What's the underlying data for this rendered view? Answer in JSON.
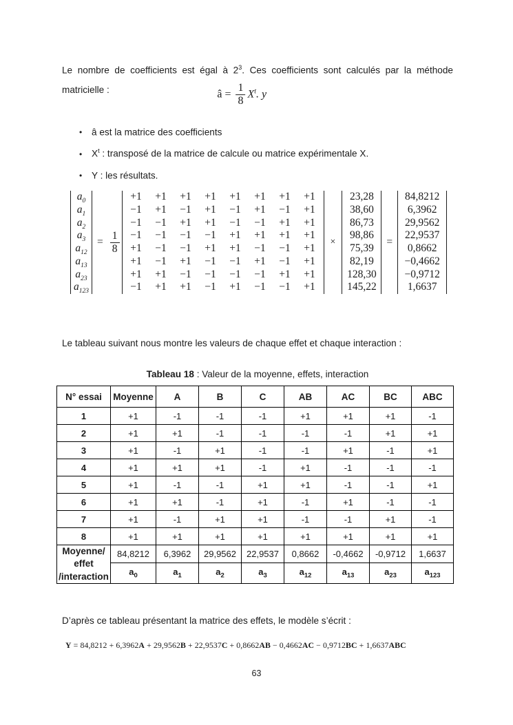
{
  "intro": {
    "line1_pre": "Le nombre de coefficients est égal à 2",
    "line1_sup": "3",
    "line1_post": ". Ces coefficients sont calculés par la méthode",
    "line2": "matricielle :"
  },
  "formula": {
    "lhs": "â =",
    "frac_num": "1",
    "frac_den": "8",
    "var": "X",
    "var_sup": "t",
    "tail": ". y"
  },
  "bullets": [
    {
      "pre": "â est la matrice des coefficients",
      "sup": "",
      "post": ""
    },
    {
      "pre": "X",
      "sup": "t",
      "post": " : transposé de la matrice de calcule ou matrice expérimentale X."
    },
    {
      "pre": "Y : les résultats.",
      "sup": "",
      "post": ""
    }
  ],
  "matrix_equation": {
    "lhs_labels": [
      [
        "a",
        "0"
      ],
      [
        "a",
        "1"
      ],
      [
        "a",
        "2"
      ],
      [
        "a",
        "3"
      ],
      [
        "a",
        "12"
      ],
      [
        "a",
        "13"
      ],
      [
        "a",
        "23"
      ],
      [
        "a",
        "123"
      ]
    ],
    "equals": "=",
    "frac_num": "1",
    "frac_den": "8",
    "matrix_rows": [
      [
        "+1",
        "+1",
        "+1",
        "+1",
        "+1",
        "+1",
        "+1",
        "+1"
      ],
      [
        "−1",
        "+1",
        "−1",
        "+1",
        "−1",
        "+1",
        "−1",
        "+1"
      ],
      [
        "−1",
        "−1",
        "+1",
        "+1",
        "−1",
        "−1",
        "+1",
        "+1"
      ],
      [
        "−1",
        "−1",
        "−1",
        "−1",
        "+1",
        "+1",
        "+1",
        "+1"
      ],
      [
        "+1",
        "−1",
        "−1",
        "+1",
        "+1",
        "−1",
        "−1",
        "+1"
      ],
      [
        "+1",
        "−1",
        "+1",
        "−1",
        "−1",
        "+1",
        "−1",
        "+1"
      ],
      [
        "+1",
        "+1",
        "−1",
        "−1",
        "−1",
        "−1",
        "+1",
        "+1"
      ],
      [
        "−1",
        "+1",
        "+1",
        "−1",
        "+1",
        "−1",
        "−1",
        "+1"
      ]
    ],
    "times": "×",
    "y_vector": [
      "23,28",
      "38,60",
      "86,73",
      "98,86",
      "75,39",
      "82,19",
      "128,30",
      "145,22"
    ],
    "equals2": "=",
    "result_vector": [
      "84,8212",
      "6,3962",
      "29,9562",
      "22,9537",
      "0,8662",
      "−0,4662",
      "−0,9712",
      "1,6637"
    ]
  },
  "paragraph_table": "Le tableau suivant nous montre les valeurs de chaque effet et chaque interaction :",
  "table": {
    "caption_bold": "Tableau 18",
    "caption_rest": " : Valeur de la moyenne, effets, interaction",
    "headers": [
      "N° essai",
      "Moyenne",
      "A",
      "B",
      "C",
      "AB",
      "AC",
      "BC",
      "ABC"
    ],
    "rows": [
      [
        "1",
        "+1",
        "-1",
        "-1",
        "-1",
        "+1",
        "+1",
        "+1",
        "-1"
      ],
      [
        "2",
        "+1",
        "+1",
        "-1",
        "-1",
        "-1",
        "-1",
        "+1",
        "+1"
      ],
      [
        "3",
        "+1",
        "-1",
        "+1",
        "-1",
        "-1",
        "+1",
        "-1",
        "+1"
      ],
      [
        "4",
        "+1",
        "+1",
        "+1",
        "-1",
        "+1",
        "-1",
        "-1",
        "-1"
      ],
      [
        "5",
        "+1",
        "-1",
        "-1",
        "+1",
        "+1",
        "-1",
        "-1",
        "+1"
      ],
      [
        "6",
        "+1",
        "+1",
        "-1",
        "+1",
        "-1",
        "+1",
        "-1",
        "-1"
      ],
      [
        "7",
        "+1",
        "-1",
        "+1",
        "+1",
        "-1",
        "-1",
        "+1",
        "-1"
      ],
      [
        "8",
        "+1",
        "+1",
        "+1",
        "+1",
        "+1",
        "+1",
        "+1",
        "+1"
      ]
    ],
    "footer_label_lines": [
      "Moyenne/",
      "effet",
      "/interaction"
    ],
    "footer_values": [
      "84,8212",
      "6,3962",
      "29,9562",
      "22,9537",
      "0,8662",
      "-0,4662",
      "-0,9712",
      "1,6637"
    ],
    "footer_coefs": [
      [
        "a",
        "0"
      ],
      [
        "a",
        "1"
      ],
      [
        "a",
        "2"
      ],
      [
        "a",
        "3"
      ],
      [
        "a",
        "12"
      ],
      [
        "a",
        "13"
      ],
      [
        "a",
        "23"
      ],
      [
        "a",
        "123"
      ]
    ]
  },
  "paragraph_model": "D’après ce tableau présentant la matrice des effets, le modèle s’écrit :",
  "model_formula": [
    {
      "t": "Y",
      "b": true
    },
    {
      "t": " = 84,8212 + 6,3962",
      "b": false
    },
    {
      "t": "A",
      "b": true
    },
    {
      "t": " + 29,9562",
      "b": false
    },
    {
      "t": "B",
      "b": true
    },
    {
      "t": " + 22,9537",
      "b": false
    },
    {
      "t": "C",
      "b": true
    },
    {
      "t": " + 0,8662",
      "b": false
    },
    {
      "t": "AB",
      "b": true
    },
    {
      "t": " − 0,4662",
      "b": false
    },
    {
      "t": "AC",
      "b": true
    },
    {
      "t": " − 0,9712",
      "b": false
    },
    {
      "t": "BC",
      "b": true
    },
    {
      "t": " + 1,6637",
      "b": false
    },
    {
      "t": "ABC",
      "b": true
    }
  ],
  "page_number": "63"
}
